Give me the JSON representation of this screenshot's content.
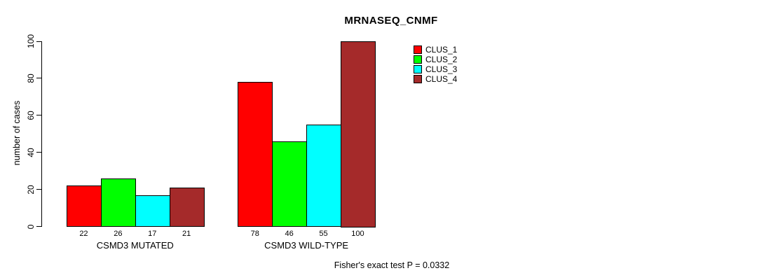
{
  "chart_data": {
    "type": "bar",
    "title": "MRNASEQ_CNMF",
    "xlabel": "",
    "ylabel": "number of cases",
    "ylim": [
      0,
      100
    ],
    "yticks": [
      0,
      20,
      40,
      60,
      80,
      100
    ],
    "grid": false,
    "categories": [
      "CSMD3 MUTATED",
      "CSMD3 WILD-TYPE"
    ],
    "series": [
      {
        "name": "CLUS_1",
        "color": "#FF0000",
        "values": [
          22,
          78
        ]
      },
      {
        "name": "CLUS_2",
        "color": "#00FF00",
        "values": [
          26,
          46
        ]
      },
      {
        "name": "CLUS_3",
        "color": "#00FFFF",
        "values": [
          17,
          55
        ]
      },
      {
        "name": "CLUS_4",
        "color": "#A52A2A",
        "values": [
          21,
          100
        ]
      }
    ],
    "bar_value_labels_shown": true,
    "legend": {
      "position": "top-right"
    },
    "annotation": "Fisher's exact test P = 0.0332"
  }
}
